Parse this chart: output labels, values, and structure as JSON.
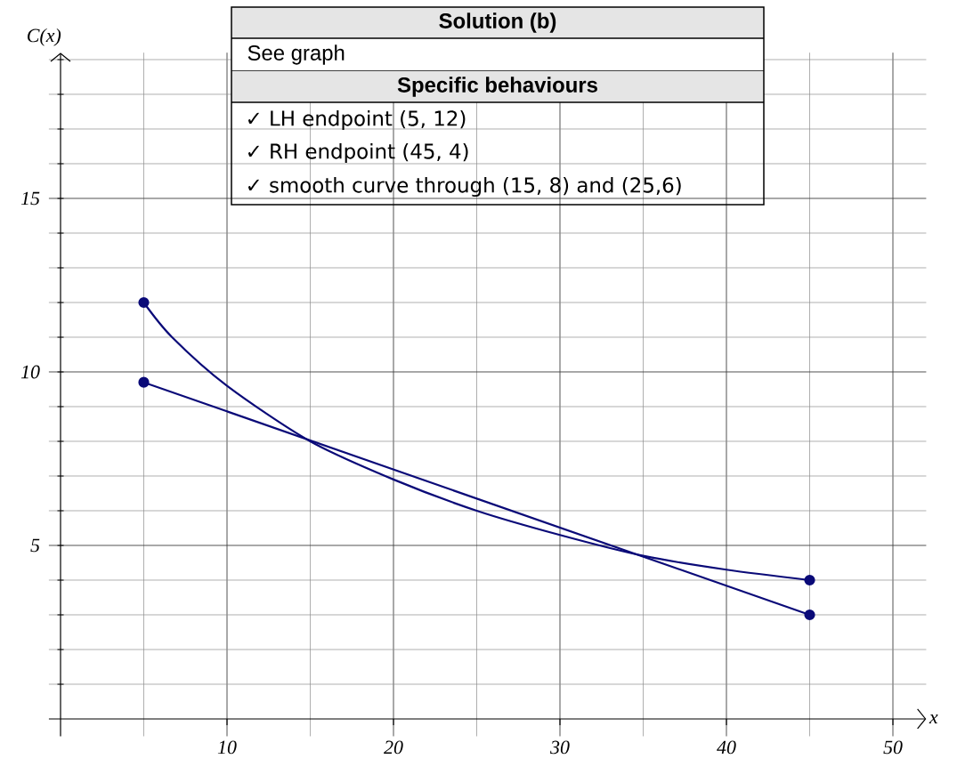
{
  "chart_data": {
    "type": "line",
    "xlabel": "x",
    "ylabel": "C(x)",
    "series": [
      {
        "x": [
          5,
          6.7,
          10,
          15,
          20,
          25,
          30,
          35,
          40,
          45
        ],
        "values": [
          12,
          11,
          9.6,
          8,
          6.9,
          6,
          5.3,
          4.7,
          4.3,
          4
        ],
        "color": "#0A0A78",
        "marker": "none"
      },
      {
        "type": "scatter",
        "x": [
          5,
          45
        ],
        "values": [
          12,
          4
        ],
        "color": "#0A0A78",
        "marker": "circle"
      },
      {
        "x": [
          5,
          45
        ],
        "values": [
          9.7,
          3
        ],
        "color": "#0A0A78",
        "marker": "circle"
      }
    ],
    "xlim": [
      -0.7,
      52
    ],
    "ylim": [
      -0.5,
      19.2
    ],
    "xticks": [
      10,
      20,
      30,
      40,
      50
    ],
    "yticks": [
      5,
      10,
      15
    ],
    "grid": true,
    "line_style": "solid",
    "annotations": [
      "Solution (b)",
      "See graph",
      "Specific behaviours",
      "✓ LH endpoint (5, 12)",
      "✓ RH endpoint (45, 4)",
      "✓ smooth curve through (15, 8) and (25,6)"
    ]
  }
}
